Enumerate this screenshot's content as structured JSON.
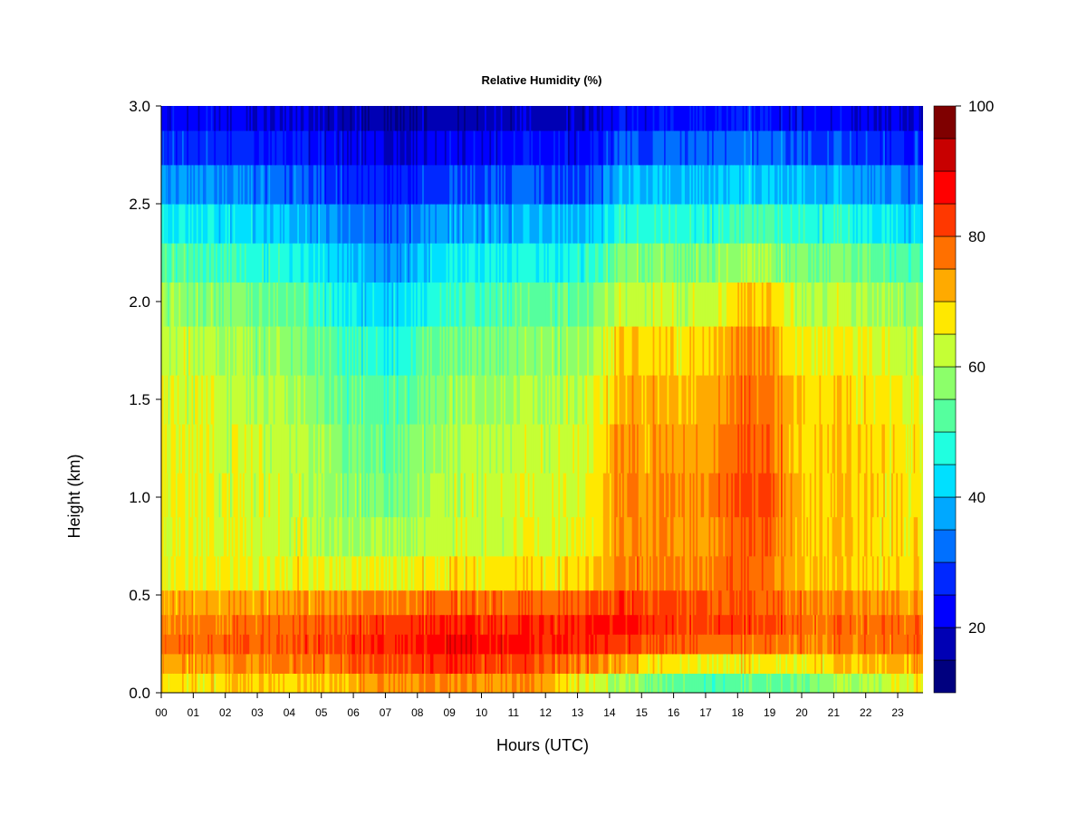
{
  "chart_data": {
    "type": "heatmap",
    "title": "Relative Humidity (%)",
    "xlabel": "Hours (UTC)",
    "ylabel": "Height (km)",
    "xlim": [
      0,
      24
    ],
    "ylim": [
      0.0,
      3.0
    ],
    "x_ticks": [
      "00",
      "01",
      "02",
      "03",
      "04",
      "05",
      "06",
      "07",
      "08",
      "09",
      "10",
      "11",
      "12",
      "13",
      "14",
      "15",
      "16",
      "17",
      "18",
      "19",
      "20",
      "21",
      "22",
      "23"
    ],
    "y_ticks": [
      "0.0",
      "0.5",
      "1.0",
      "1.5",
      "2.0",
      "2.5",
      "3.0"
    ],
    "y_tick_values": [
      0.0,
      0.5,
      1.0,
      1.5,
      2.0,
      2.5,
      3.0
    ],
    "colorbar": {
      "min": 10,
      "max": 100,
      "step": 5,
      "tick_values": [
        20,
        40,
        60,
        80,
        100
      ],
      "tick_labels": [
        "20",
        "40",
        "60",
        "80",
        "100"
      ],
      "colors": [
        "#00007f",
        "#0000b4",
        "#0000ff",
        "#0028ff",
        "#0070ff",
        "#00a8ff",
        "#00e0ff",
        "#20ffe0",
        "#55ff9e",
        "#8cff6a",
        "#c5ff35",
        "#ffe800",
        "#ffaa00",
        "#ff7000",
        "#ff3800",
        "#ff0000",
        "#c80000",
        "#7f0000"
      ]
    },
    "heights_km": [
      0.05,
      0.15,
      0.25,
      0.35,
      0.45,
      0.6,
      0.8,
      1.0,
      1.25,
      1.5,
      1.75,
      2.0,
      2.2,
      2.4,
      2.6,
      2.8,
      2.95
    ],
    "hours": [
      0.0,
      0.5,
      1.0,
      1.5,
      2.0,
      2.5,
      3.0,
      3.5,
      4.0,
      4.5,
      5.0,
      5.5,
      6.0,
      6.5,
      7.0,
      7.5,
      8.0,
      8.5,
      9.0,
      9.5,
      10.0,
      10.5,
      11.0,
      11.5,
      12.0,
      12.5,
      13.0,
      13.5,
      14.0,
      14.5,
      15.0,
      15.5,
      16.0,
      16.5,
      17.0,
      17.5,
      18.0,
      18.5,
      19.0,
      19.5,
      20.0,
      20.5,
      21.0,
      21.5,
      22.0,
      22.5,
      23.0,
      23.5,
      23.83
    ],
    "anchor_hours": [
      0,
      4,
      7,
      9,
      12,
      13.5,
      14.2,
      15.5,
      17,
      18,
      19,
      20,
      21.5,
      23.83
    ],
    "anchor_profiles": [
      [
        67,
        72,
        77,
        75,
        72,
        65,
        64,
        65,
        65,
        64,
        62,
        58,
        52,
        45,
        36,
        28,
        22
      ],
      [
        70,
        77,
        80,
        78,
        74,
        66,
        63,
        63,
        62,
        60,
        58,
        53,
        47,
        40,
        32,
        25,
        20
      ],
      [
        73,
        80,
        84,
        82,
        76,
        64,
        58,
        54,
        52,
        50,
        46,
        40,
        35,
        30,
        24,
        19,
        15
      ],
      [
        76,
        84,
        88,
        85,
        78,
        67,
        63,
        62,
        61,
        58,
        55,
        50,
        44,
        37,
        29,
        22,
        17
      ],
      [
        72,
        80,
        85,
        84,
        78,
        67,
        64,
        63,
        62,
        60,
        57,
        53,
        46,
        38,
        30,
        23,
        18
      ],
      [
        64,
        76,
        85,
        86,
        80,
        70,
        67,
        66,
        65,
        63,
        60,
        55,
        48,
        40,
        31,
        24,
        19
      ],
      [
        60,
        73,
        83,
        86,
        82,
        75,
        74,
        74,
        73,
        71,
        68,
        62,
        55,
        47,
        38,
        29,
        22
      ],
      [
        55,
        68,
        80,
        84,
        81,
        76,
        75,
        76,
        74,
        72,
        69,
        63,
        57,
        49,
        40,
        31,
        24
      ],
      [
        51,
        66,
        78,
        82,
        80,
        75,
        74,
        75,
        73,
        71,
        68,
        62,
        56,
        48,
        40,
        32,
        25
      ],
      [
        52,
        67,
        79,
        83,
        81,
        79,
        80,
        82,
        80,
        78,
        76,
        70,
        60,
        51,
        42,
        33,
        26
      ],
      [
        53,
        67,
        78,
        82,
        80,
        78,
        79,
        81,
        79,
        77,
        75,
        69,
        59,
        50,
        41,
        32,
        25
      ],
      [
        55,
        67,
        76,
        78,
        76,
        71,
        70,
        70,
        69,
        68,
        66,
        62,
        56,
        48,
        39,
        30,
        23
      ],
      [
        60,
        70,
        77,
        78,
        75,
        70,
        70,
        70,
        70,
        69,
        66,
        61,
        55,
        47,
        38,
        29,
        22
      ],
      [
        67,
        74,
        79,
        78,
        74,
        68,
        67,
        67,
        66,
        64,
        61,
        57,
        50,
        42,
        33,
        25,
        19
      ]
    ]
  }
}
